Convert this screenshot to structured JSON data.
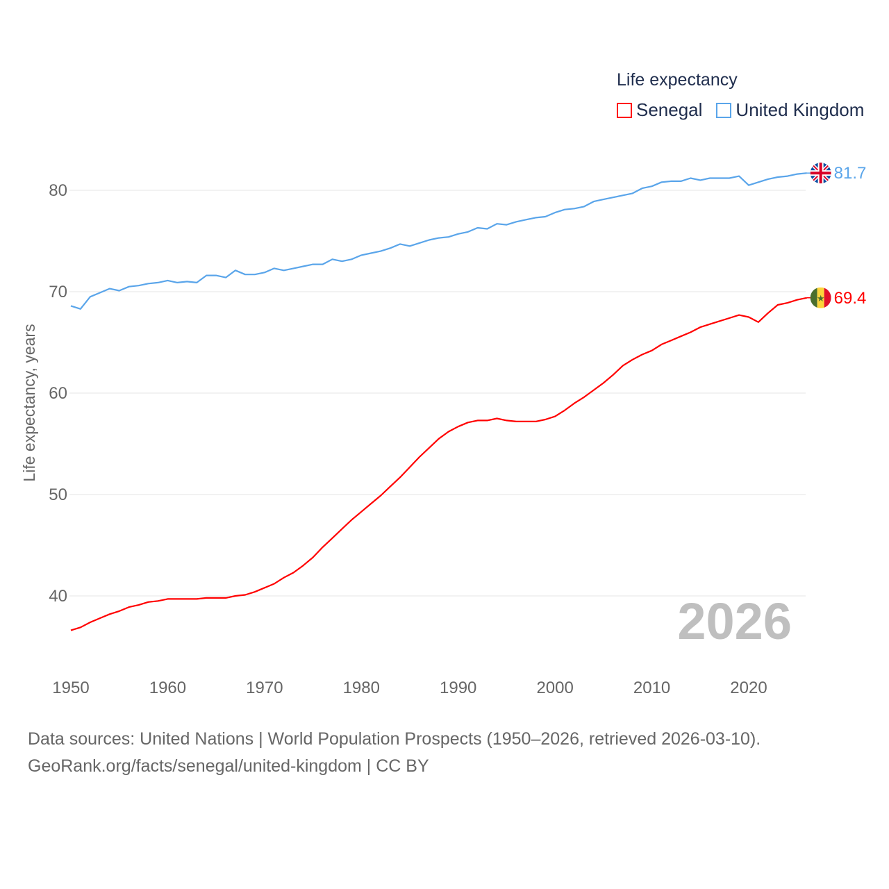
{
  "chart_data": {
    "type": "line",
    "legend_title": "Life expectancy",
    "ylabel": "Life expectancy, years",
    "xlabel": "",
    "ylim": [
      35,
      85
    ],
    "xlim": [
      1950,
      2026
    ],
    "yticks": [
      40,
      50,
      60,
      70,
      80
    ],
    "xticks": [
      1950,
      1960,
      1970,
      1980,
      1990,
      2000,
      2010,
      2020
    ],
    "grid": true,
    "legend_position": "top-right",
    "year_label": "2026",
    "x_start": 1950,
    "series": [
      {
        "name": "Senegal",
        "color": "#ff0000",
        "end_label": "69.4",
        "flag_icon": "senegal-flag-icon",
        "values": [
          36.6,
          36.9,
          37.4,
          37.8,
          38.2,
          38.5,
          38.9,
          39.1,
          39.4,
          39.5,
          39.7,
          39.7,
          39.7,
          39.7,
          39.8,
          39.8,
          39.8,
          40.0,
          40.1,
          40.4,
          40.8,
          41.2,
          41.8,
          42.3,
          43.0,
          43.8,
          44.8,
          45.7,
          46.6,
          47.5,
          48.3,
          49.1,
          49.9,
          50.8,
          51.7,
          52.7,
          53.7,
          54.6,
          55.5,
          56.2,
          56.7,
          57.1,
          57.3,
          57.3,
          57.5,
          57.3,
          57.2,
          57.2,
          57.2,
          57.4,
          57.7,
          58.3,
          59.0,
          59.6,
          60.3,
          61.0,
          61.8,
          62.7,
          63.3,
          63.8,
          64.2,
          64.8,
          65.2,
          65.6,
          66.0,
          66.5,
          66.8,
          67.1,
          67.4,
          67.7,
          67.5,
          67.0,
          67.9,
          68.7,
          68.9,
          69.2,
          69.4
        ]
      },
      {
        "name": "United Kingdom",
        "color": "#5aa5ea",
        "end_label": "81.7",
        "flag_icon": "uk-flag-icon",
        "values": [
          68.6,
          68.3,
          69.5,
          69.9,
          70.3,
          70.1,
          70.5,
          70.6,
          70.8,
          70.9,
          71.1,
          70.9,
          71.0,
          70.9,
          71.6,
          71.6,
          71.4,
          72.1,
          71.7,
          71.7,
          71.9,
          72.3,
          72.1,
          72.3,
          72.5,
          72.7,
          72.7,
          73.2,
          73.0,
          73.2,
          73.6,
          73.8,
          74.0,
          74.3,
          74.7,
          74.5,
          74.8,
          75.1,
          75.3,
          75.4,
          75.7,
          75.9,
          76.3,
          76.2,
          76.7,
          76.6,
          76.9,
          77.1,
          77.3,
          77.4,
          77.8,
          78.1,
          78.2,
          78.4,
          78.9,
          79.1,
          79.3,
          79.5,
          79.7,
          80.2,
          80.4,
          80.8,
          80.9,
          80.9,
          81.2,
          81.0,
          81.2,
          81.2,
          81.2,
          81.4,
          80.5,
          80.8,
          81.1,
          81.3,
          81.4,
          81.6,
          81.7
        ]
      }
    ]
  },
  "footer": {
    "line1": "Data sources: United Nations | World Population Prospects (1950–2026, retrieved 2026-03-10).",
    "line2": "GeoRank.org/facts/senegal/united-kingdom | CC BY"
  }
}
